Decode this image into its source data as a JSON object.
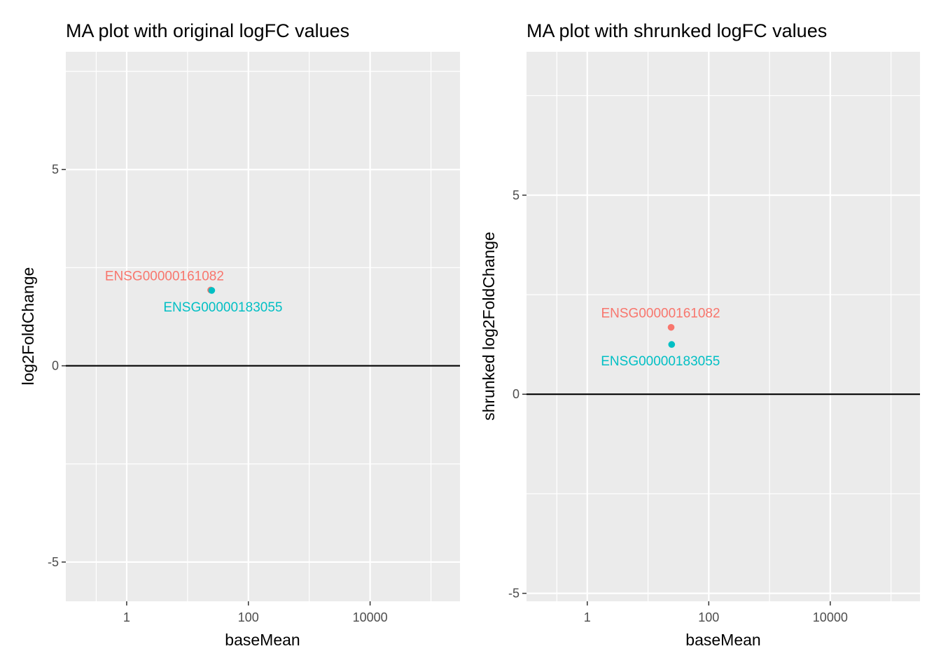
{
  "chart_data": [
    {
      "type": "scatter",
      "title": "MA plot with original logFC values",
      "xlabel": "baseMean",
      "ylabel": "log2FoldChange",
      "x_scale": "log10",
      "xlim": [
        0.1,
        300000
      ],
      "ylim": [
        -6.0,
        8.0
      ],
      "x_ticks": [
        1,
        100,
        10000
      ],
      "x_tick_labels": [
        "1",
        "100",
        "10000"
      ],
      "y_ticks": [
        -5,
        0,
        5
      ],
      "y_tick_labels": [
        "-5",
        "0",
        "5"
      ],
      "hline": 0,
      "grid": true,
      "points": [
        {
          "label": "ENSG00000161082",
          "x": 24,
          "y": 1.93,
          "color": "#F8766D"
        },
        {
          "label": "ENSG00000183055",
          "x": 25,
          "y": 1.92,
          "color": "#00BFC4"
        }
      ]
    },
    {
      "type": "scatter",
      "title": "MA plot with shrunked logFC values",
      "xlabel": "baseMean",
      "ylabel": "shrunked log2FoldChange",
      "x_scale": "log10",
      "xlim": [
        0.1,
        300000
      ],
      "ylim": [
        -5.2,
        8.6
      ],
      "x_ticks": [
        1,
        100,
        10000
      ],
      "x_tick_labels": [
        "1",
        "100",
        "10000"
      ],
      "y_ticks": [
        -5,
        0,
        5
      ],
      "y_tick_labels": [
        "-5",
        "0",
        "5"
      ],
      "hline": 0,
      "grid": true,
      "points": [
        {
          "label": "ENSG00000161082",
          "x": 24,
          "y": 1.68,
          "color": "#F8766D"
        },
        {
          "label": "ENSG00000183055",
          "x": 24.5,
          "y": 1.25,
          "color": "#00BFC4"
        }
      ]
    }
  ]
}
